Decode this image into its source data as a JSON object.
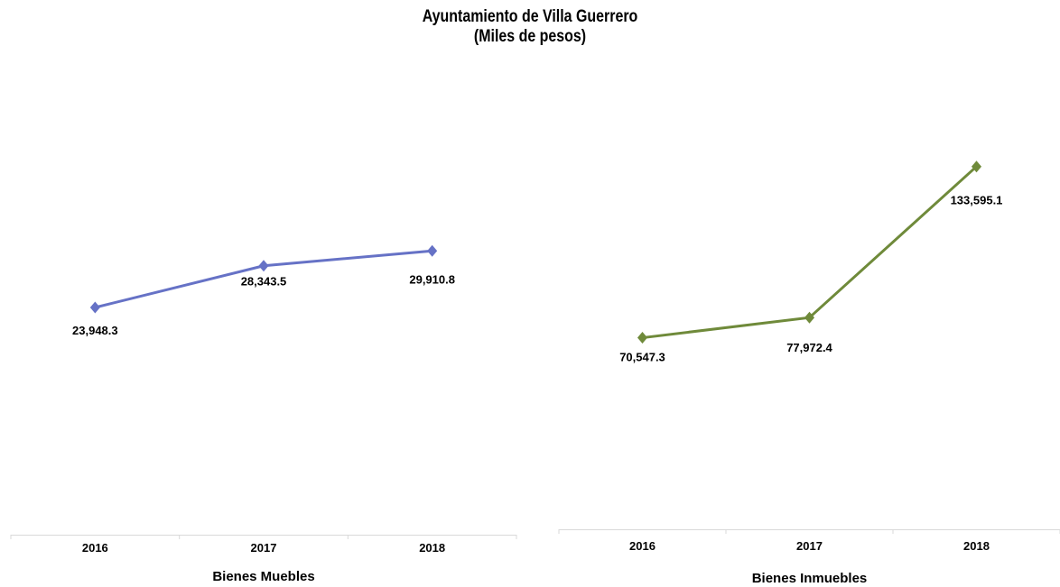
{
  "page": {
    "title": "Ayuntamiento de Villa Guerrero",
    "subtitle": "(Miles de pesos)"
  },
  "chart_data": [
    {
      "type": "line",
      "title": "",
      "xlabel": "Bienes Muebles",
      "ylabel": "",
      "categories": [
        "2016",
        "2017",
        "2018"
      ],
      "series": [
        {
          "values": [
            23948.3,
            28343.5,
            29910.8
          ],
          "labels": [
            "23,948.3",
            "28,343.5",
            "29,910.8"
          ],
          "color": "#6672c6",
          "marker": "diamond"
        }
      ],
      "ylim": [
        0,
        44000
      ],
      "grid": false,
      "legend": "none"
    },
    {
      "type": "line",
      "title": "",
      "xlabel": "Bienes Inmuebles",
      "ylabel": "",
      "categories": [
        "2016",
        "2017",
        "2018"
      ],
      "series": [
        {
          "values": [
            70547.3,
            77972.4,
            133595.1
          ],
          "labels": [
            "70,547.3",
            "77,972.4",
            "133,595.1"
          ],
          "color": "#6f8a3a",
          "marker": "diamond"
        }
      ],
      "ylim": [
        0,
        175000
      ],
      "grid": false,
      "legend": "none"
    }
  ]
}
